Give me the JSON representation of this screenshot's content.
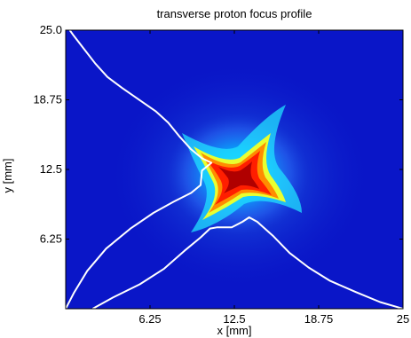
{
  "chart_data": {
    "type": "heatmap",
    "title": "transverse proton focus profile",
    "xlabel": "x [mm]",
    "ylabel": "y [mm]",
    "xlim": [
      0,
      25
    ],
    "ylim": [
      0,
      25
    ],
    "x_ticks": [
      {
        "value": 6.25,
        "label": "6.25"
      },
      {
        "value": 12.5,
        "label": "12.5"
      },
      {
        "value": 18.75,
        "label": "18.75"
      },
      {
        "value": 25,
        "label": "25"
      }
    ],
    "y_ticks": [
      {
        "value": 6.25,
        "label": "6.25"
      },
      {
        "value": 12.5,
        "label": "12.5"
      },
      {
        "value": 18.75,
        "label": "18.75"
      },
      {
        "value": 25,
        "label": "25.0"
      }
    ],
    "grid": false,
    "colormap": "jet",
    "background_color": "#0a16c8",
    "focus": {
      "center": [
        12.9,
        11.9
      ],
      "peak_colors": [
        "#b00000",
        "#ff2000",
        "#ffcc00",
        "#00e0ff",
        "#1a5cff"
      ]
    },
    "contours": [
      {
        "name": "upper-left-contour",
        "color": "#ffffff",
        "points": [
          [
            0.3,
            25.0
          ],
          [
            0.6,
            24.5
          ],
          [
            1.3,
            23.4
          ],
          [
            2.2,
            22.0
          ],
          [
            3.1,
            20.8
          ],
          [
            4.2,
            19.8
          ],
          [
            5.5,
            18.7
          ],
          [
            6.7,
            17.7
          ],
          [
            7.6,
            16.7
          ],
          [
            8.4,
            15.5
          ],
          [
            9.3,
            14.3
          ],
          [
            10.1,
            13.5
          ],
          [
            10.8,
            13.1
          ],
          [
            10.1,
            12.4
          ],
          [
            10.0,
            11.1
          ],
          [
            9.3,
            10.4
          ],
          [
            8.0,
            9.6
          ],
          [
            6.5,
            8.6
          ],
          [
            4.8,
            7.2
          ],
          [
            3.0,
            5.4
          ],
          [
            1.6,
            3.4
          ],
          [
            0.6,
            1.4
          ],
          [
            0.0,
            0.0
          ]
        ]
      },
      {
        "name": "lower-contour",
        "color": "#ffffff",
        "points": [
          [
            2.0,
            0.0
          ],
          [
            3.5,
            1.0
          ],
          [
            5.5,
            2.2
          ],
          [
            7.3,
            3.6
          ],
          [
            8.8,
            5.2
          ],
          [
            10.0,
            6.4
          ],
          [
            10.7,
            7.2
          ],
          [
            11.2,
            7.3
          ],
          [
            12.3,
            7.3
          ],
          [
            13.1,
            7.8
          ],
          [
            13.6,
            8.2
          ],
          [
            14.2,
            7.8
          ],
          [
            15.4,
            6.5
          ],
          [
            16.6,
            5.0
          ],
          [
            18.0,
            3.7
          ],
          [
            19.6,
            2.5
          ],
          [
            21.5,
            1.5
          ],
          [
            23.3,
            0.6
          ],
          [
            25.0,
            0.0
          ]
        ]
      }
    ]
  }
}
